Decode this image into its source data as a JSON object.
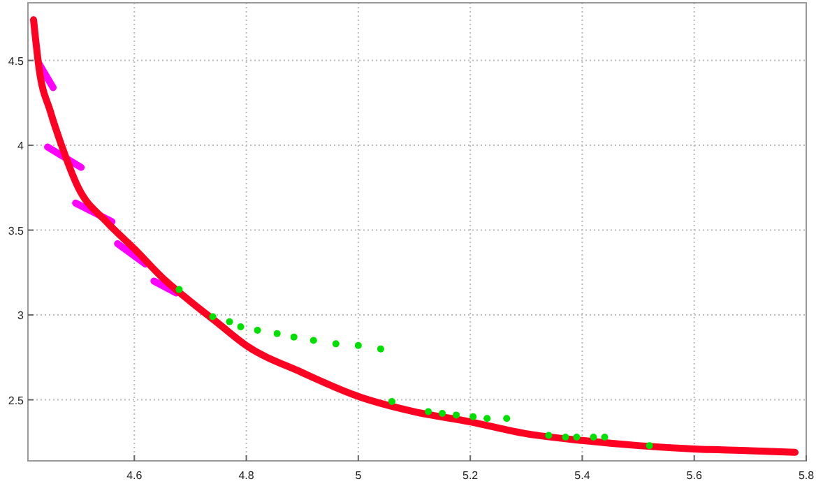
{
  "chart_data": {
    "type": "scatter",
    "xlim": [
      4.41,
      5.8
    ],
    "ylim": [
      2.14,
      4.84
    ],
    "xticks": [
      4.6,
      4.8,
      5,
      5.2,
      5.4,
      5.6,
      5.8
    ],
    "yticks": [
      2.5,
      3,
      3.5,
      4,
      4.5
    ],
    "grid": true,
    "series": [
      {
        "type": "line",
        "color": "#ff00ff",
        "marker": "none",
        "x": [
          4.43,
          4.455
        ],
        "values": [
          4.48,
          4.34
        ]
      },
      {
        "type": "line",
        "color": "#ff00ff",
        "marker": "none",
        "x": [
          4.445,
          4.505
        ],
        "values": [
          3.99,
          3.87
        ]
      },
      {
        "type": "line",
        "color": "#ff00ff",
        "marker": "none",
        "x": [
          4.495,
          4.56
        ],
        "values": [
          3.66,
          3.55
        ]
      },
      {
        "type": "line",
        "color": "#ff00ff",
        "marker": "none",
        "x": [
          4.57,
          4.62
        ],
        "values": [
          3.42,
          3.3
        ]
      },
      {
        "type": "line",
        "color": "#ff00ff",
        "marker": "none",
        "x": [
          4.635,
          4.675
        ],
        "values": [
          3.2,
          3.13
        ]
      },
      {
        "type": "line",
        "color": "#ff0022",
        "marker": "none",
        "x": [
          4.42,
          4.43,
          4.45,
          4.47,
          4.5,
          4.55,
          4.6,
          4.65,
          4.7,
          4.75,
          4.8,
          4.9,
          5,
          5.1,
          5.2,
          5.3,
          5.4,
          5.5,
          5.6,
          5.7,
          5.78
        ],
        "values": [
          4.74,
          4.45,
          4.2,
          4.0,
          3.75,
          3.55,
          3.39,
          3.22,
          3.08,
          2.95,
          2.82,
          2.66,
          2.52,
          2.43,
          2.37,
          2.3,
          2.26,
          2.23,
          2.21,
          2.2,
          2.19
        ]
      },
      {
        "color": "#00e000",
        "marker": "circle",
        "x": [
          4.68,
          4.74,
          4.77,
          4.79,
          4.82,
          4.855,
          4.885,
          4.92,
          4.96,
          5.0,
          5.04,
          5.06,
          5.125,
          5.15,
          5.175,
          5.205,
          5.23,
          5.265,
          5.34,
          5.37,
          5.39,
          5.42,
          5.44,
          5.52
        ],
        "values": [
          3.15,
          2.99,
          2.96,
          2.93,
          2.91,
          2.89,
          2.87,
          2.85,
          2.83,
          2.82,
          2.8,
          2.49,
          2.43,
          2.42,
          2.41,
          2.4,
          2.39,
          2.39,
          2.29,
          2.28,
          2.28,
          2.28,
          2.28,
          2.23
        ]
      }
    ]
  }
}
